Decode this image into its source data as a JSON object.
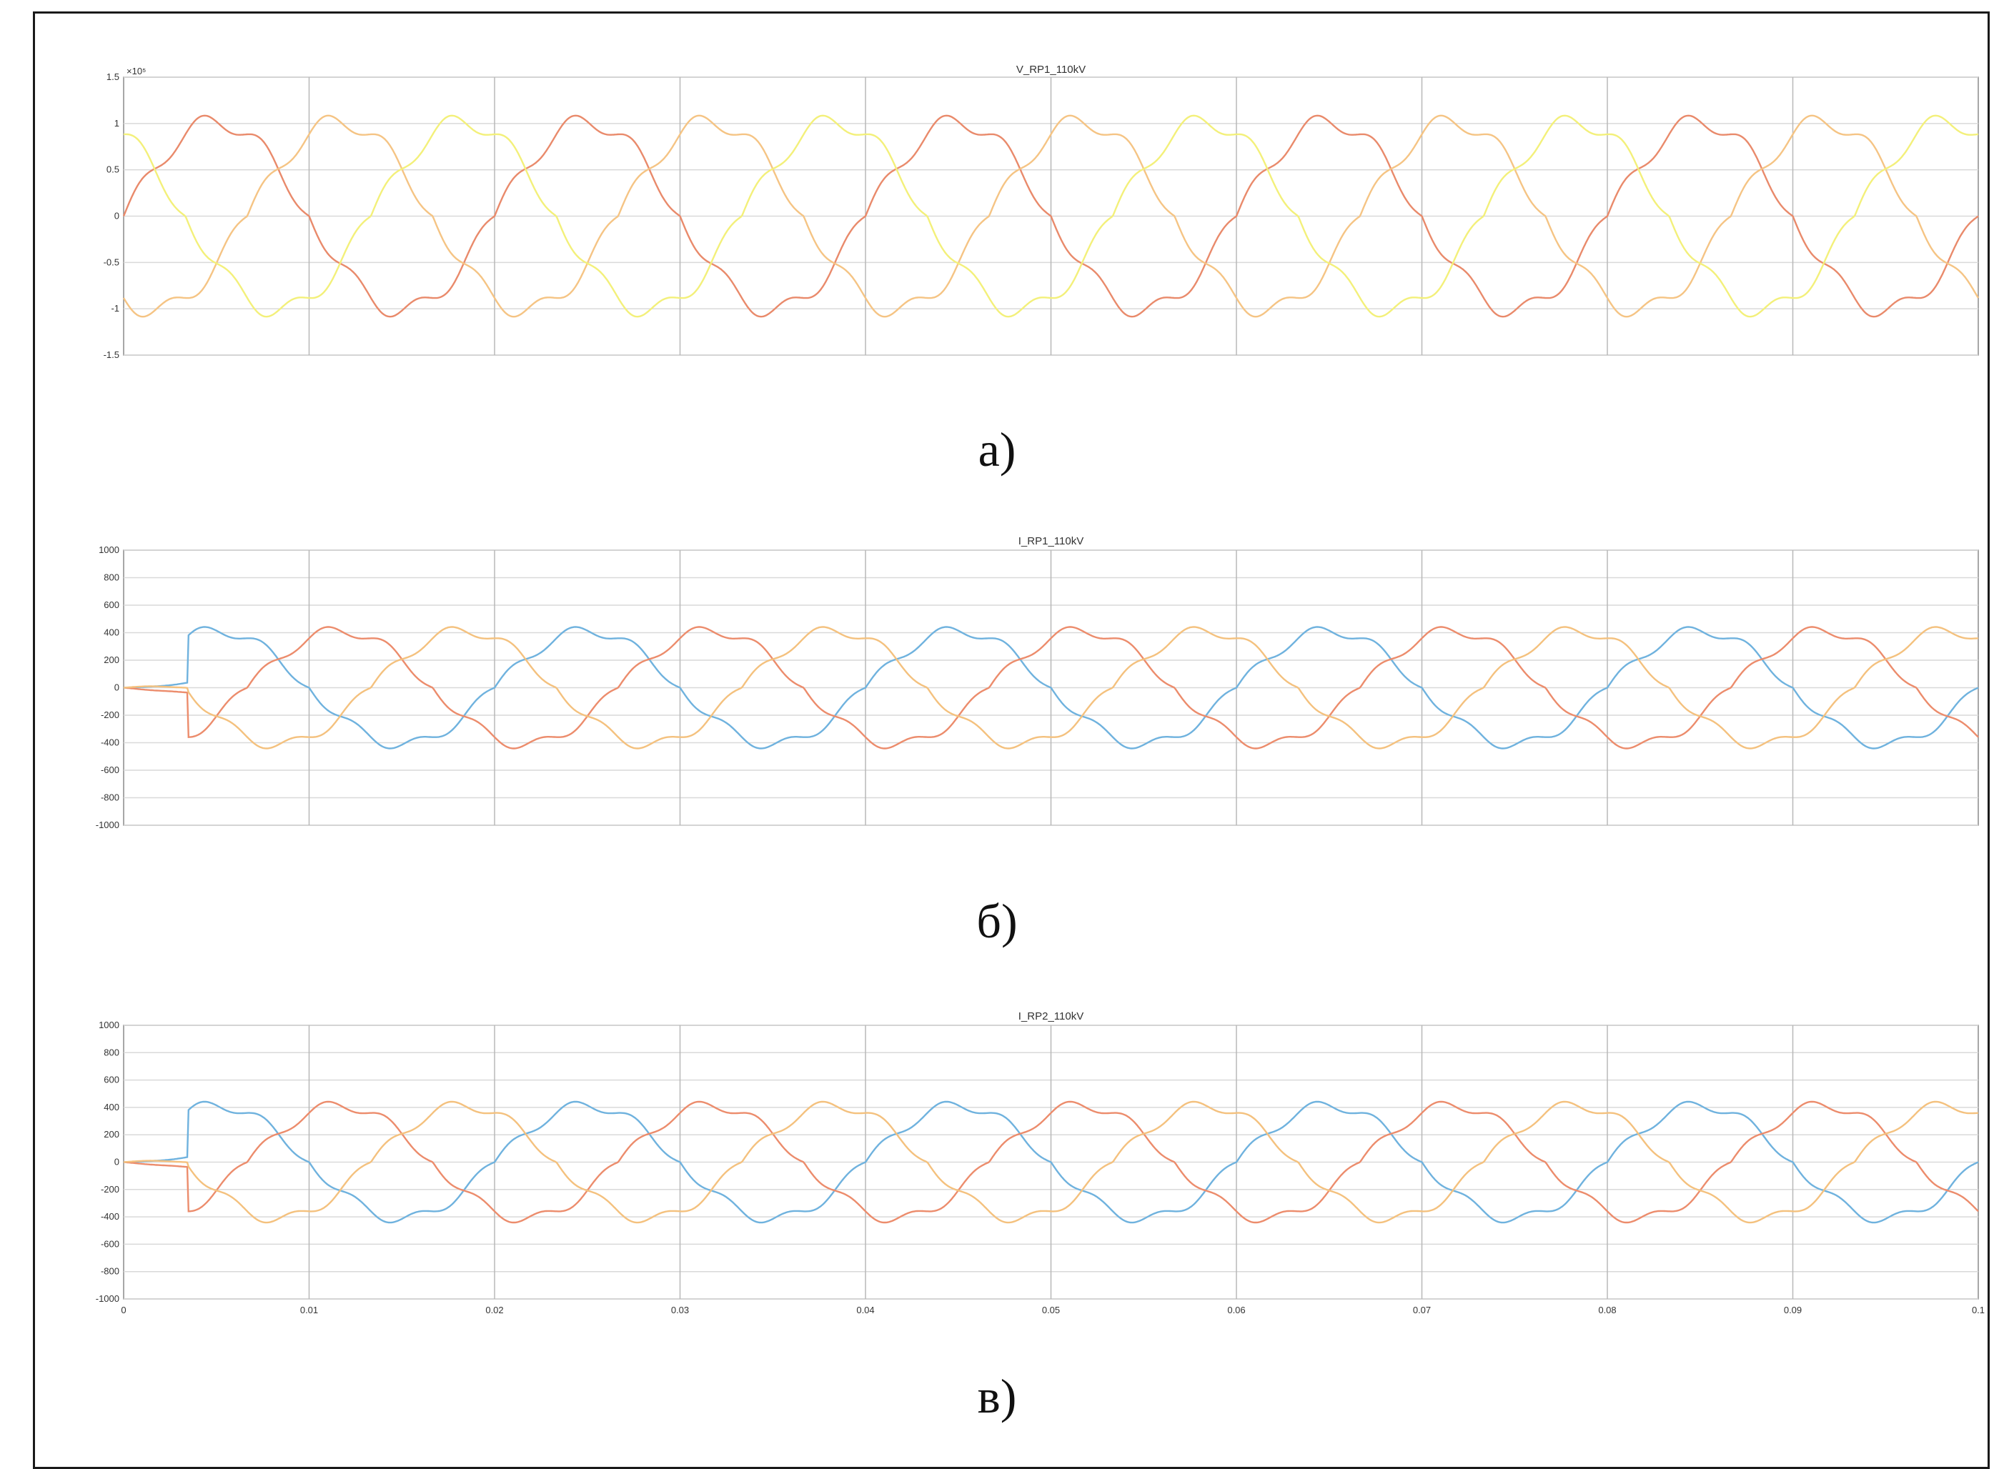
{
  "figure": {
    "captions": [
      "а)",
      "б)",
      "в)"
    ]
  },
  "chart_data": [
    {
      "type": "line",
      "title": "V_RP1_110kV",
      "xlabel": "",
      "ylabel": "",
      "xlim": [
        0,
        0.1
      ],
      "ylim": [
        -1.5,
        1.5
      ],
      "y_exponent_label": "×10⁵",
      "yticks": [
        -1.5,
        -1,
        -0.5,
        0,
        0.5,
        1,
        1.5
      ],
      "ytick_labels": [
        "-1.5",
        "-1",
        "-0.5",
        "0",
        "0.5",
        "1",
        "1.5"
      ],
      "xticks": [],
      "xtick_labels": [],
      "grid": true,
      "series": [
        {
          "color": "#e98a6b",
          "amplitude": 1.02,
          "phase_deg": 0
        },
        {
          "color": "#f5c484",
          "amplitude": 1.02,
          "phase_deg": -120
        },
        {
          "color": "#f3f07a",
          "amplitude": 1.02,
          "phase_deg": 120
        }
      ]
    },
    {
      "type": "line",
      "title": "I_RP1_110kV",
      "xlabel": "",
      "ylabel": "",
      "xlim": [
        0,
        0.1
      ],
      "ylim": [
        -1000,
        1000
      ],
      "yticks": [
        -1000,
        -800,
        -600,
        -400,
        -200,
        0,
        200,
        400,
        600,
        800,
        1000
      ],
      "ytick_labels": [
        "-1000",
        "-800",
        "-600",
        "-400",
        "-200",
        "0",
        "200",
        "400",
        "600",
        "800",
        "1000"
      ],
      "xticks": [],
      "xtick_labels": [],
      "grid": true,
      "series": [
        {
          "color": "#6fb2de",
          "amplitude": 415,
          "phase_deg": 0
        },
        {
          "color": "#ec8c6c",
          "amplitude": 415,
          "phase_deg": -120
        },
        {
          "color": "#f4c17e",
          "amplitude": 415,
          "phase_deg": 120
        }
      ]
    },
    {
      "type": "line",
      "title": "I_RP2_110kV",
      "xlabel": "",
      "ylabel": "",
      "xlim": [
        0,
        0.1
      ],
      "ylim": [
        -1000,
        1000
      ],
      "yticks": [
        -1000,
        -800,
        -600,
        -400,
        -200,
        0,
        200,
        400,
        600,
        800,
        1000
      ],
      "ytick_labels": [
        "-1000",
        "-800",
        "-600",
        "-400",
        "-200",
        "0",
        "200",
        "400",
        "600",
        "800",
        "1000"
      ],
      "xticks": [
        0,
        0.01,
        0.02,
        0.03,
        0.04,
        0.05,
        0.06,
        0.07,
        0.08,
        0.09,
        0.1
      ],
      "xtick_labels": [
        "0",
        "0.01",
        "0.02",
        "0.03",
        "0.04",
        "0.05",
        "0.06",
        "0.07",
        "0.08",
        "0.09",
        "0.1"
      ],
      "grid": true,
      "series": [
        {
          "color": "#6fb2de",
          "amplitude": 415,
          "phase_deg": 0
        },
        {
          "color": "#ec8c6c",
          "amplitude": 415,
          "phase_deg": -120
        },
        {
          "color": "#f4c17e",
          "amplitude": 415,
          "phase_deg": 120
        }
      ]
    }
  ]
}
